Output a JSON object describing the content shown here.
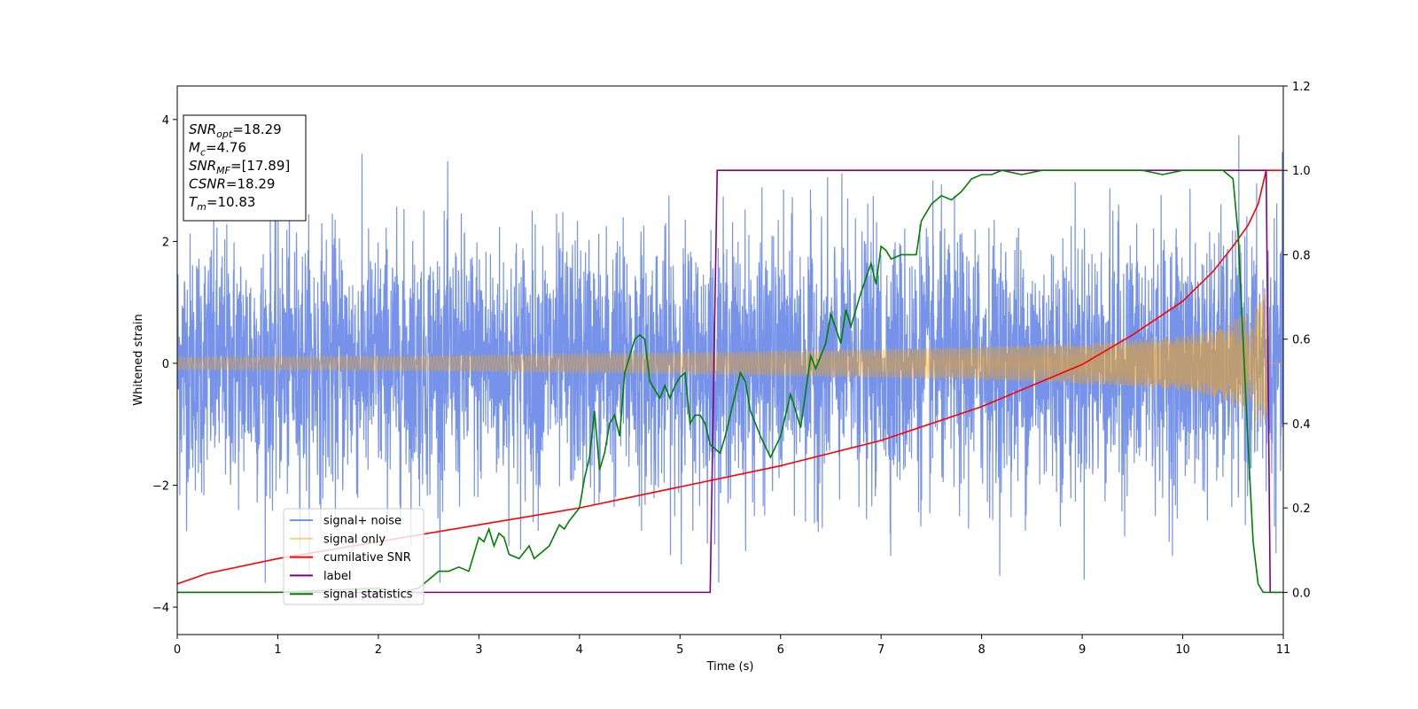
{
  "chart_data": {
    "type": "line",
    "xlabel": "Time (s)",
    "ylabel": "Whitened strain",
    "xlim": [
      0,
      11
    ],
    "ylim_left": [
      -4.45,
      4.55
    ],
    "ylim_right": [
      -0.1,
      1.2
    ],
    "x_ticks": [
      "0",
      "1",
      "2",
      "3",
      "4",
      "5",
      "6",
      "7",
      "8",
      "9",
      "10",
      "11"
    ],
    "y_left_ticks": [
      "−4",
      "−2",
      "0",
      "2",
      "4"
    ],
    "y_right_ticks": [
      "0.0",
      "0.2",
      "0.4",
      "0.6",
      "0.8",
      "1.0",
      "1.2"
    ],
    "legend_position": "lower-left",
    "info_box": {
      "lines": [
        {
          "main": "SNR",
          "sub": "opt",
          "value": "=18.29"
        },
        {
          "main": "M",
          "sub": "c",
          "value": "=4.76"
        },
        {
          "main": "SNR",
          "sub": "MF",
          "value": "=[17.89]"
        },
        {
          "main": "CSNR",
          "sub": "",
          "value": "=18.29"
        },
        {
          "main": "T",
          "sub": "m",
          "value": "=10.83"
        }
      ]
    },
    "series": [
      {
        "name": "signal+ noise",
        "color": "#4169e1",
        "axis": "left",
        "kind": "noise",
        "noise_std": 1.05,
        "x_range": [
          0,
          11
        ]
      },
      {
        "name": "signal only",
        "color": "#ffa500",
        "axis": "left",
        "kind": "chirp",
        "envelope_x": [
          0,
          1,
          2,
          3,
          4,
          5,
          6,
          7,
          8,
          9,
          10,
          10.4,
          10.6,
          10.75,
          10.83,
          10.85,
          11
        ],
        "envelope_y": [
          0.1,
          0.11,
          0.12,
          0.14,
          0.16,
          0.18,
          0.21,
          0.24,
          0.28,
          0.33,
          0.45,
          0.6,
          0.8,
          1.0,
          1.3,
          0,
          0
        ]
      },
      {
        "name": "cumilative SNR",
        "color": "#ff0000",
        "axis": "right",
        "x": [
          0,
          0.3,
          1,
          2,
          3,
          4,
          5,
          6,
          7,
          8,
          9,
          9.5,
          10,
          10.3,
          10.5,
          10.65,
          10.75,
          10.83,
          11
        ],
        "y": [
          0.02,
          0.045,
          0.08,
          0.12,
          0.16,
          0.2,
          0.25,
          0.3,
          0.36,
          0.44,
          0.54,
          0.61,
          0.69,
          0.76,
          0.82,
          0.87,
          0.92,
          1.0,
          1.0
        ]
      },
      {
        "name": "label",
        "color": "#800080",
        "axis": "right",
        "x": [
          0,
          5.3,
          5.37,
          10.83,
          10.87,
          11
        ],
        "y": [
          0,
          0,
          1,
          1,
          0,
          0
        ]
      },
      {
        "name": "signal statistics",
        "color": "#008000",
        "axis": "right",
        "x": [
          0,
          1,
          2,
          2.2,
          2.4,
          2.5,
          2.6,
          2.7,
          2.8,
          2.9,
          3.0,
          3.05,
          3.1,
          3.15,
          3.2,
          3.25,
          3.3,
          3.4,
          3.5,
          3.55,
          3.6,
          3.7,
          3.8,
          3.85,
          3.9,
          4.0,
          4.05,
          4.1,
          4.15,
          4.2,
          4.25,
          4.3,
          4.35,
          4.4,
          4.45,
          4.5,
          4.55,
          4.6,
          4.65,
          4.7,
          4.8,
          4.85,
          4.9,
          4.95,
          5.0,
          5.05,
          5.1,
          5.15,
          5.2,
          5.25,
          5.3,
          5.4,
          5.45,
          5.5,
          5.6,
          5.65,
          5.7,
          5.8,
          5.9,
          6.0,
          6.1,
          6.15,
          6.2,
          6.3,
          6.35,
          6.4,
          6.45,
          6.5,
          6.6,
          6.65,
          6.7,
          6.8,
          6.9,
          6.95,
          7.0,
          7.05,
          7.1,
          7.2,
          7.3,
          7.35,
          7.4,
          7.5,
          7.6,
          7.7,
          7.8,
          7.9,
          8.0,
          8.1,
          8.2,
          8.4,
          8.6,
          8.8,
          9.0,
          9.2,
          9.4,
          9.6,
          9.8,
          10.0,
          10.2,
          10.4,
          10.5,
          10.55,
          10.6,
          10.65,
          10.7,
          10.75,
          10.8,
          10.85,
          10.9,
          11.0
        ],
        "y": [
          0.0,
          0.0,
          0.01,
          0.0,
          0.01,
          0.03,
          0.05,
          0.05,
          0.06,
          0.05,
          0.13,
          0.12,
          0.15,
          0.11,
          0.14,
          0.13,
          0.09,
          0.08,
          0.11,
          0.08,
          0.09,
          0.11,
          0.16,
          0.15,
          0.17,
          0.2,
          0.27,
          0.32,
          0.43,
          0.29,
          0.33,
          0.4,
          0.42,
          0.37,
          0.52,
          0.56,
          0.6,
          0.61,
          0.6,
          0.5,
          0.46,
          0.49,
          0.46,
          0.49,
          0.51,
          0.52,
          0.4,
          0.42,
          0.42,
          0.4,
          0.35,
          0.33,
          0.37,
          0.42,
          0.52,
          0.5,
          0.43,
          0.37,
          0.32,
          0.37,
          0.47,
          0.43,
          0.39,
          0.56,
          0.53,
          0.56,
          0.59,
          0.66,
          0.59,
          0.67,
          0.63,
          0.71,
          0.78,
          0.73,
          0.82,
          0.81,
          0.79,
          0.8,
          0.8,
          0.8,
          0.88,
          0.92,
          0.94,
          0.93,
          0.95,
          0.98,
          0.99,
          0.99,
          1.0,
          0.99,
          1.0,
          1.0,
          1.0,
          1.0,
          1.0,
          1.0,
          0.99,
          1.0,
          1.0,
          1.0,
          0.98,
          0.85,
          0.6,
          0.35,
          0.12,
          0.02,
          0.0,
          0.0,
          0.0,
          0.0
        ]
      }
    ]
  }
}
